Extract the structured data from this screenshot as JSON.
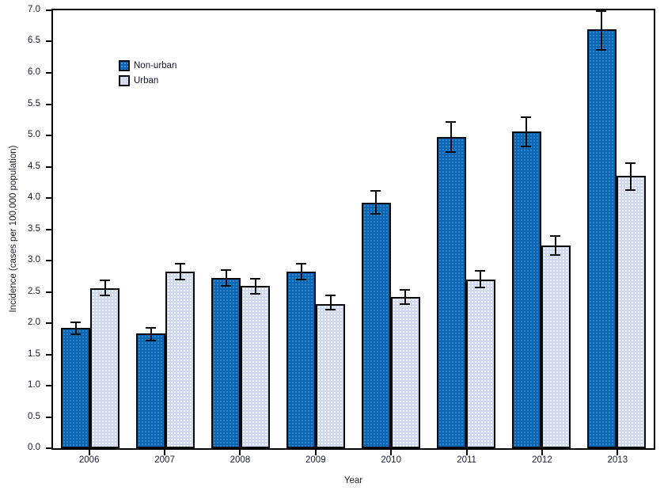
{
  "figure": {
    "background": "#ffffff",
    "axis_color": "#000000",
    "text_color": "#1b1b30"
  },
  "chart_data": {
    "type": "bar",
    "title": "",
    "xlabel": "Year",
    "ylabel": "Incidence (cases per 100,000 population)",
    "categories": [
      "2006",
      "2007",
      "2008",
      "2009",
      "2010",
      "2011",
      "2012",
      "2013"
    ],
    "series": [
      {
        "name": "Non-urban",
        "color": "#0b66b2",
        "values": [
          1.92,
          1.83,
          2.72,
          2.82,
          3.93,
          4.97,
          5.06,
          6.7
        ],
        "err_low": [
          1.81,
          1.71,
          2.58,
          2.68,
          3.74,
          4.72,
          4.81,
          6.36
        ],
        "err_high": [
          2.03,
          1.94,
          2.86,
          2.96,
          4.13,
          5.23,
          5.31,
          7.0
        ]
      },
      {
        "name": "Urban",
        "color": "#cfd8ee",
        "values": [
          2.56,
          2.82,
          2.59,
          2.31,
          2.42,
          2.7,
          3.24,
          4.35
        ],
        "err_low": [
          2.43,
          2.68,
          2.46,
          2.2,
          2.29,
          2.56,
          3.08,
          4.12
        ],
        "err_high": [
          2.69,
          2.96,
          2.72,
          2.45,
          2.55,
          2.85,
          3.4,
          4.57
        ]
      }
    ],
    "ylim": [
      0,
      7
    ],
    "ytick_step": 0.5,
    "yticks": [
      "0.0",
      "0.5",
      "1.0",
      "1.5",
      "2.0",
      "2.5",
      "3.0",
      "3.5",
      "4.0",
      "4.5",
      "5.0",
      "5.5",
      "6.0",
      "6.5",
      "7.0"
    ],
    "grid": false,
    "legend_position": "upper-left-inside",
    "error_bars": true
  }
}
